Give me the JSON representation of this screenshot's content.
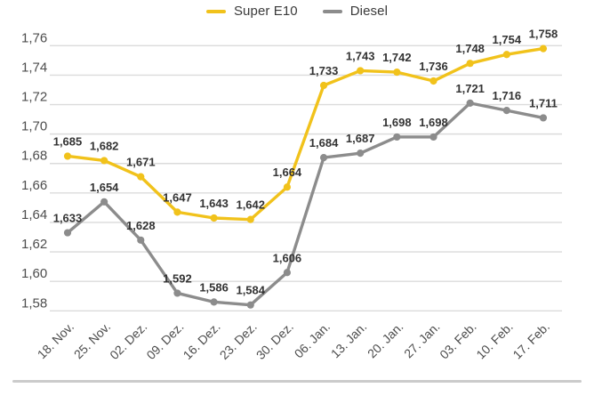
{
  "legend": {
    "items": [
      {
        "label": "Super E10"
      },
      {
        "label": "Diesel"
      }
    ]
  },
  "chart_data": {
    "type": "line",
    "title": "",
    "xlabel": "",
    "ylabel": "",
    "categories": [
      "18. Nov.",
      "25. Nov.",
      "02. Dez.",
      "09. Dez.",
      "16. Dez.",
      "23. Dez.",
      "30. Dez.",
      "06. Jan.",
      "13. Jan.",
      "20. Jan.",
      "27. Jan.",
      "03. Feb.",
      "10. Feb.",
      "17. Feb."
    ],
    "series": [
      {
        "name": "Super E10",
        "color": "#F1C21B",
        "values": [
          1.685,
          1.682,
          1.671,
          1.647,
          1.643,
          1.642,
          1.664,
          1.733,
          1.743,
          1.742,
          1.736,
          1.748,
          1.754,
          1.758
        ],
        "point_labels": [
          "1,685",
          "1,682",
          "1,671",
          "1,647",
          "1,643",
          "1,642",
          "1,664",
          "1,733",
          "1,743",
          "1,742",
          "1,736",
          "1,748",
          "1,754",
          "1,758"
        ]
      },
      {
        "name": "Diesel",
        "color": "#8C8C8C",
        "values": [
          1.633,
          1.654,
          1.628,
          1.592,
          1.586,
          1.584,
          1.606,
          1.684,
          1.687,
          1.698,
          1.698,
          1.721,
          1.716,
          1.711
        ],
        "point_labels": [
          "1,633",
          "1,654",
          "1,628",
          "1,592",
          "1,586",
          "1,584",
          "1,606",
          "1,684",
          "1,687",
          "1,698",
          "1,698",
          "1,721",
          "1,716",
          "1,711"
        ]
      }
    ],
    "ylim": [
      1.58,
      1.76
    ],
    "ytick_labels": [
      "1,58",
      "1,60",
      "1,62",
      "1,64",
      "1,66",
      "1,68",
      "1,70",
      "1,72",
      "1,74",
      "1,76"
    ],
    "grid": true,
    "legend_position": "top-center",
    "decimal_separator": ","
  },
  "colors": {
    "grid": "#DBDBDB",
    "axis_text": "#4D4D4D",
    "data_label": "#333333",
    "divider": "#CBCBCB",
    "background": "#FFFFFF"
  }
}
